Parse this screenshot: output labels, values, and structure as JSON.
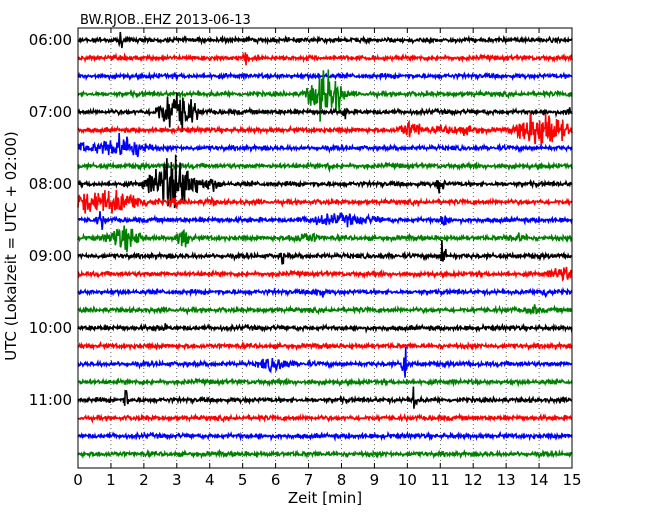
{
  "chart_data": {
    "type": "line",
    "title": "BW.RJOB..EHZ 2013-06-13",
    "xlabel": "Zeit  [min]",
    "ylabel": "UTC (Lokalzeit = UTC + 02:00)",
    "xlim": [
      0,
      15
    ],
    "x_ticks": [
      "0",
      "1",
      "2",
      "3",
      "4",
      "5",
      "6",
      "7",
      "8",
      "9",
      "10",
      "11",
      "12",
      "13",
      "14",
      "15"
    ],
    "y_ticks": [
      {
        "label": "06:00",
        "row": 0
      },
      {
        "label": "07:00",
        "row": 4
      },
      {
        "label": "08:00",
        "row": 8
      },
      {
        "label": "09:00",
        "row": 12
      },
      {
        "label": "10:00",
        "row": 16
      },
      {
        "label": "11:00",
        "row": 20
      }
    ],
    "grid": "vertical dotted",
    "trace_colors": [
      "#000000",
      "#ff0000",
      "#0000ff",
      "#008000"
    ],
    "traces": [
      {
        "start": "06:00",
        "events": [
          {
            "t": 1.3,
            "amp": 0.5,
            "w": 0.08
          }
        ]
      },
      {
        "start": "06:15",
        "events": [
          {
            "t": 5.1,
            "amp": 0.7,
            "w": 0.06
          }
        ]
      },
      {
        "start": "06:30",
        "events": []
      },
      {
        "start": "06:45",
        "events": [
          {
            "t": 7.5,
            "amp": 1.6,
            "w": 0.35
          },
          {
            "t": 7.9,
            "amp": 1.1,
            "w": 0.1
          }
        ]
      },
      {
        "start": "07:00",
        "events": [
          {
            "t": 3.0,
            "amp": 1.5,
            "w": 0.4
          },
          {
            "t": 8.1,
            "amp": 0.5,
            "w": 0.1
          },
          {
            "t": 14.9,
            "amp": 0.8,
            "w": 0.05
          }
        ]
      },
      {
        "start": "07:15",
        "events": [
          {
            "t": 10.1,
            "amp": 0.6,
            "w": 0.3
          },
          {
            "t": 14.1,
            "amp": 1.4,
            "w": 0.5
          },
          {
            "t": 11.5,
            "amp": 0.3,
            "w": 0.8
          }
        ]
      },
      {
        "start": "07:30",
        "events": [
          {
            "t": 0.1,
            "amp": 0.6,
            "w": 0.1
          },
          {
            "t": 1.3,
            "amp": 0.8,
            "w": 0.6
          }
        ]
      },
      {
        "start": "07:45",
        "events": [
          {
            "t": 7.6,
            "amp": 0.5,
            "w": 0.05
          }
        ]
      },
      {
        "start": "08:00",
        "events": [
          {
            "t": 2.9,
            "amp": 1.8,
            "w": 0.5
          },
          {
            "t": 4.0,
            "amp": 0.5,
            "w": 0.3
          },
          {
            "t": 11.0,
            "amp": 0.6,
            "w": 0.1
          }
        ]
      },
      {
        "start": "08:15",
        "events": [
          {
            "t": 0.8,
            "amp": 0.8,
            "w": 1.0
          },
          {
            "t": 2.9,
            "amp": 0.6,
            "w": 0.1
          },
          {
            "t": 4.0,
            "amp": 0.3,
            "w": 0.2
          }
        ]
      },
      {
        "start": "08:30",
        "events": [
          {
            "t": 0.7,
            "amp": 0.6,
            "w": 0.1
          },
          {
            "t": 8.0,
            "amp": 0.4,
            "w": 1.0
          },
          {
            "t": 11.1,
            "amp": 1.3,
            "w": 0.05
          }
        ]
      },
      {
        "start": "08:45",
        "events": [
          {
            "t": 1.4,
            "amp": 0.8,
            "w": 0.4
          },
          {
            "t": 3.2,
            "amp": 0.6,
            "w": 0.2
          },
          {
            "t": 6.9,
            "amp": 0.4,
            "w": 0.4
          },
          {
            "t": 13.3,
            "amp": 0.3,
            "w": 0.4
          }
        ]
      },
      {
        "start": "09:00",
        "events": [
          {
            "t": 6.2,
            "amp": 0.6,
            "w": 0.05
          },
          {
            "t": 11.1,
            "amp": 1.6,
            "w": 0.05
          }
        ]
      },
      {
        "start": "09:15",
        "events": [
          {
            "t": 14.7,
            "amp": 0.5,
            "w": 0.3
          }
        ]
      },
      {
        "start": "09:30",
        "events": [
          {
            "t": 7.3,
            "amp": 0.5,
            "w": 0.15
          },
          {
            "t": 14.2,
            "amp": 0.4,
            "w": 0.2
          }
        ]
      },
      {
        "start": "09:45",
        "events": [
          {
            "t": 13.8,
            "amp": 0.4,
            "w": 0.15
          }
        ]
      },
      {
        "start": "10:00",
        "events": [
          {
            "t": 2.5,
            "amp": 0.3,
            "w": 0.2
          }
        ]
      },
      {
        "start": "10:15",
        "events": []
      },
      {
        "start": "10:30",
        "events": [
          {
            "t": 6.0,
            "amp": 0.5,
            "w": 0.4
          },
          {
            "t": 9.9,
            "amp": 1.6,
            "w": 0.05
          }
        ]
      },
      {
        "start": "10:45",
        "events": [
          {
            "t": 10.0,
            "amp": 0.3,
            "w": 0.05
          }
        ]
      },
      {
        "start": "11:00",
        "events": [
          {
            "t": 1.45,
            "amp": 1.4,
            "w": 0.04
          },
          {
            "t": 10.2,
            "amp": 1.0,
            "w": 0.05
          }
        ]
      },
      {
        "start": "11:15",
        "events": []
      },
      {
        "start": "11:30",
        "events": []
      },
      {
        "start": "11:45",
        "events": []
      }
    ]
  }
}
